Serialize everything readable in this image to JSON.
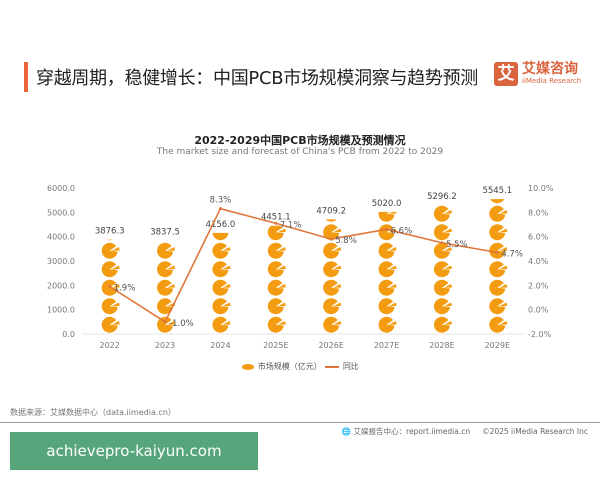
{
  "header": {
    "title": "穿越周期，稳健增长：中国PCB市场规模洞察与趋势预测",
    "logo_mark": "艾",
    "logo_cn": "艾媒咨询",
    "logo_en": "iiMedia Research"
  },
  "chart_data": {
    "type": "bar",
    "title": "2022-2029中国PCB市场规模及预测情况",
    "subtitle": "The market size and forecast of China's PCB from 2022 to 2029",
    "categories": [
      "2022",
      "2023",
      "2024",
      "2025E",
      "2026E",
      "2027E",
      "2028E",
      "2029E"
    ],
    "series": [
      {
        "name": "市场规模（亿元）",
        "type": "pictorial-bar",
        "axis": "left",
        "color": "#f39c12",
        "values": [
          3876.3,
          3837.5,
          4156.0,
          4451.1,
          4709.2,
          5020.0,
          5296.2,
          5545.1
        ],
        "labels": [
          "3876.3",
          "3837.5",
          "4156.0",
          "4451.1",
          "4709.2",
          "5020.0",
          "5296.2",
          "5545.1"
        ]
      },
      {
        "name": "同比",
        "type": "line",
        "axis": "right",
        "color": "#e0763a",
        "values": [
          1.9,
          -1.0,
          8.3,
          7.1,
          5.8,
          6.6,
          5.5,
          4.7
        ],
        "labels": [
          "1.9%",
          "-1.0%",
          "8.3%",
          "7.1%",
          "5.8%",
          "6.6%",
          "5.5%",
          "4.7%"
        ]
      }
    ],
    "y_left": {
      "min": 0,
      "max": 6000,
      "ticks": [
        "0.0",
        "1000.0",
        "2000.0",
        "3000.0",
        "4000.0",
        "5000.0",
        "6000.0"
      ]
    },
    "y_right": {
      "min": -2,
      "max": 10,
      "ticks": [
        "-2.0%",
        "0.0%",
        "2.0%",
        "4.0%",
        "6.0%",
        "8.0%",
        "10.0%"
      ]
    },
    "legend": "bottom",
    "grid": false
  },
  "footer": {
    "source": "数据来源：艾媒数据中心（data.iimedia.cn）",
    "report": "艾媒报告中心：report.iimedia.cn",
    "copyright": "©2025  iiMedia Research  Inc"
  },
  "watermark": "achievepro-kaiyun.com"
}
